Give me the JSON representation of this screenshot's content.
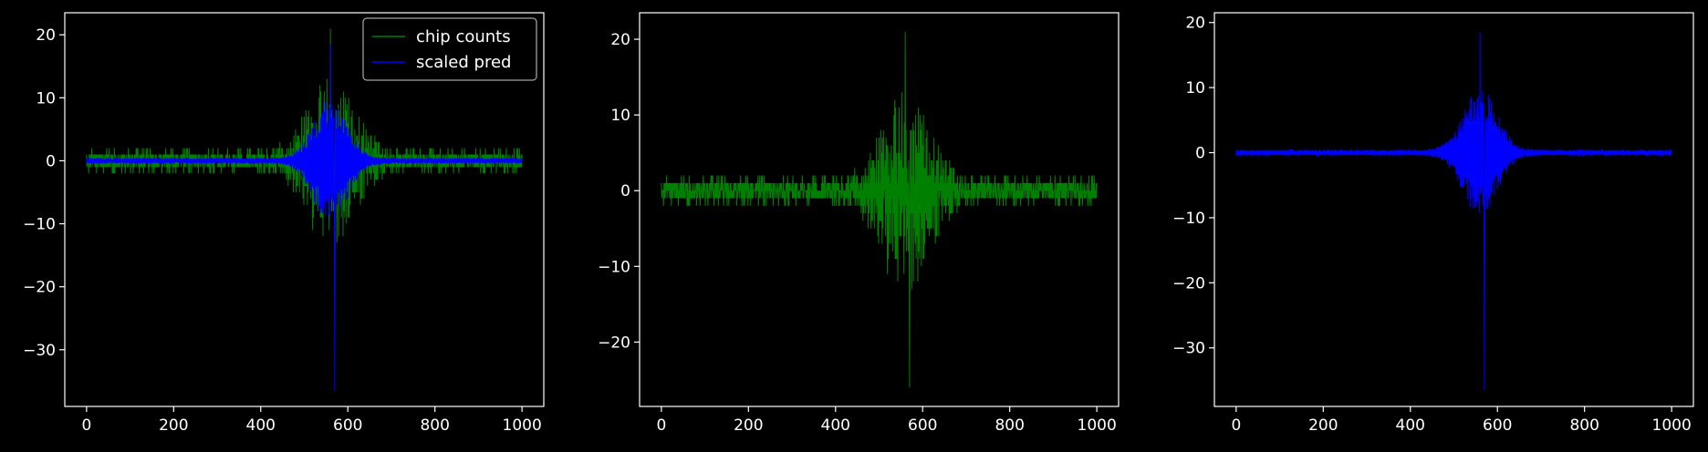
{
  "chart_data": [
    {
      "type": "line",
      "title": "",
      "xlabel": "",
      "ylabel": "",
      "xlim": [
        -50,
        1050
      ],
      "ylim": [
        -39,
        23.5
      ],
      "xticks": [
        0,
        200,
        400,
        600,
        800,
        1000
      ],
      "yticks": [
        -30,
        -20,
        -10,
        0,
        10,
        20
      ],
      "grid": false,
      "legend": {
        "placement": "top-right",
        "entries": [
          "chip counts",
          "scaled pred"
        ]
      },
      "series": [
        {
          "name": "chip counts",
          "color": "#008000",
          "pattern": "noisy-symmetric",
          "x_range": [
            0,
            1000
          ],
          "peak_x": 560,
          "envelope_width": 75,
          "base_amplitude": 1.2,
          "max_value": 21,
          "min_value": -26
        },
        {
          "name": "scaled pred",
          "color": "#0000ff",
          "pattern": "smooth-symmetric",
          "x_range": [
            0,
            1000
          ],
          "peak_x": 560,
          "envelope_width": 55,
          "base_amplitude": 0.4,
          "max_value": 18.5,
          "min_value": -36.5
        }
      ]
    },
    {
      "type": "line",
      "title": "",
      "xlabel": "",
      "ylabel": "",
      "xlim": [
        -50,
        1050
      ],
      "ylim": [
        -28.5,
        23.5
      ],
      "xticks": [
        0,
        200,
        400,
        600,
        800,
        1000
      ],
      "yticks": [
        -20,
        -10,
        0,
        10,
        20
      ],
      "grid": false,
      "series": [
        {
          "color": "#008000",
          "pattern": "noisy-symmetric",
          "x_range": [
            0,
            1000
          ],
          "peak_x": 560,
          "envelope_width": 75,
          "base_amplitude": 1.2,
          "max_value": 21,
          "min_value": -26
        }
      ]
    },
    {
      "type": "line",
      "title": "",
      "xlabel": "",
      "ylabel": "",
      "xlim": [
        -50,
        1050
      ],
      "ylim": [
        -39,
        21.5
      ],
      "xticks": [
        0,
        200,
        400,
        600,
        800,
        1000
      ],
      "yticks": [
        -30,
        -20,
        -10,
        0,
        10,
        20
      ],
      "grid": false,
      "series": [
        {
          "color": "#0000ff",
          "pattern": "smooth-symmetric",
          "x_range": [
            0,
            1000
          ],
          "peak_x": 560,
          "envelope_width": 55,
          "base_amplitude": 0.4,
          "max_value": 18.5,
          "min_value": -36.5
        }
      ]
    }
  ]
}
